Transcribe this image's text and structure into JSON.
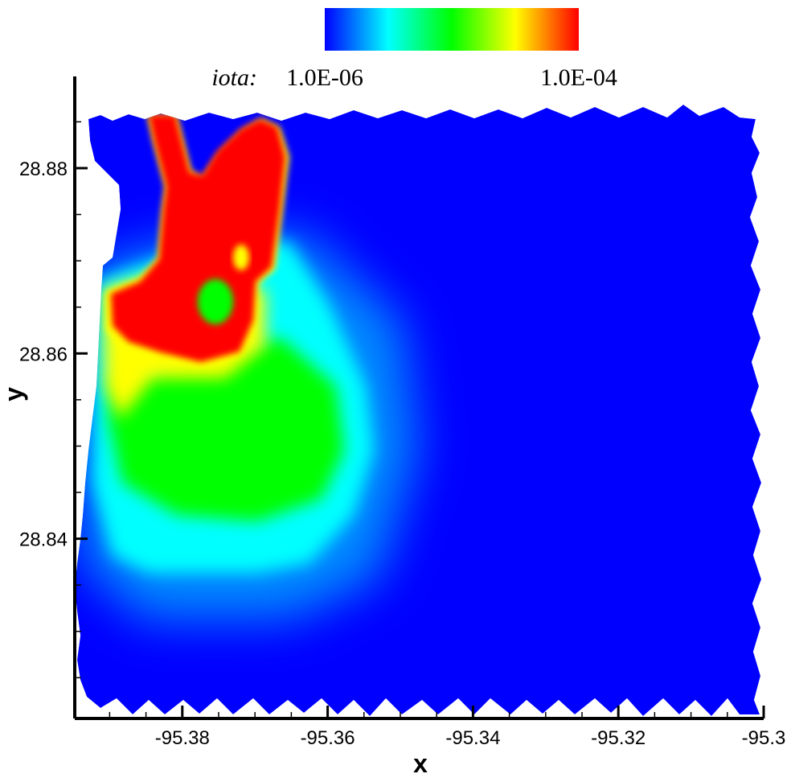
{
  "chart_data": {
    "type": "contour",
    "colorbar": {
      "label": "iota:",
      "lim": [
        1e-06,
        0.0001
      ],
      "log": true,
      "ticks": [
        {
          "value": 1e-06,
          "label": "1.0E-06"
        },
        {
          "value": 0.0001,
          "label": "1.0E-04"
        }
      ],
      "colors": [
        "#0000ff",
        "#00ffff",
        "#00ff00",
        "#ffff00",
        "#ff0000"
      ]
    },
    "xlabel": "x",
    "ylabel": "y",
    "xlim": [
      -95.3948,
      -95.3
    ],
    "ylim": [
      28.8206,
      28.8899
    ],
    "xticks": [
      -95.38,
      -95.36,
      -95.34,
      -95.32,
      -95.3
    ],
    "yticks": [
      28.84,
      28.86,
      28.88
    ],
    "xminorticks": [
      -95.39,
      -95.385,
      -95.375,
      -95.37,
      -95.365,
      -95.355,
      -95.35,
      -95.345,
      -95.335,
      -95.33,
      -95.325,
      -95.315,
      -95.31,
      -95.305
    ],
    "yminorticks": [
      28.825,
      28.83,
      28.835,
      28.845,
      28.85,
      28.855,
      28.865,
      28.87,
      28.875,
      28.885
    ]
  }
}
